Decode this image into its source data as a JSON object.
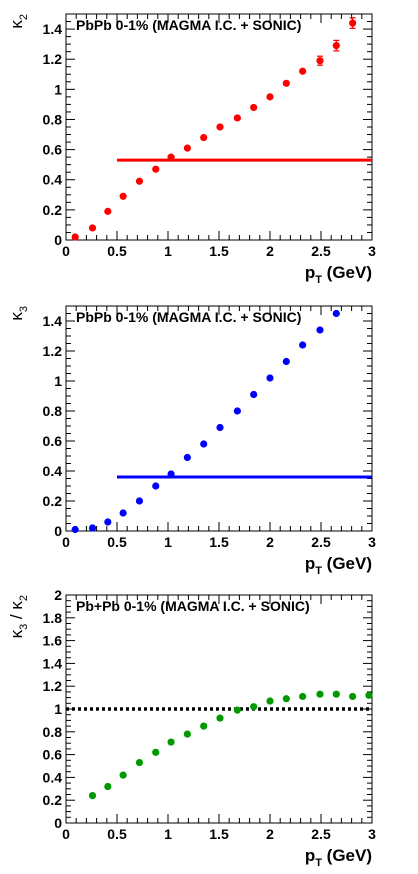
{
  "chart_data": [
    {
      "type": "scatter",
      "annotation": "PbPb 0-1% (MAGMA I.C. + SONIC)",
      "xlabel": {
        "main": "p",
        "sub": "T",
        "unit": " (GeV)"
      },
      "ylabel": {
        "main": "κ",
        "sub": "2"
      },
      "xlim": [
        0,
        3
      ],
      "ylim": [
        0,
        1.5
      ],
      "x_ticks": [
        "0",
        "0.5",
        "1",
        "1.5",
        "2",
        "2.5",
        "3"
      ],
      "y_ticks": [
        "0",
        "0.2",
        "0.4",
        "0.6",
        "0.8",
        "1",
        "1.2",
        "1.4"
      ],
      "color": "#ff0000",
      "reference_line": {
        "y": 0.53,
        "x_from": 0.5,
        "x_to": 3.0,
        "style": "solid",
        "color": "#ff0000"
      },
      "series": [
        {
          "x": [
            0.09,
            0.26,
            0.41,
            0.56,
            0.72,
            0.88,
            1.03,
            1.19,
            1.35,
            1.51,
            1.68,
            1.84,
            2.0,
            2.16,
            2.32,
            2.49,
            2.65,
            2.81
          ],
          "y": [
            0.02,
            0.08,
            0.19,
            0.29,
            0.39,
            0.47,
            0.55,
            0.61,
            0.68,
            0.75,
            0.81,
            0.88,
            0.95,
            1.04,
            1.12,
            1.19,
            1.29,
            1.44
          ],
          "yerr": [
            0,
            0,
            0,
            0,
            0,
            0,
            0,
            0,
            0,
            0,
            0,
            0,
            0,
            0,
            0,
            0.03,
            0.035,
            0.035
          ]
        }
      ]
    },
    {
      "type": "scatter",
      "annotation": "PbPb 0-1% (MAGMA I.C. + SONIC)",
      "xlabel": {
        "main": "p",
        "sub": "T",
        "unit": " (GeV)"
      },
      "ylabel": {
        "main": "κ",
        "sub": "3"
      },
      "xlim": [
        0,
        3
      ],
      "ylim": [
        0,
        1.5
      ],
      "x_ticks": [
        "0",
        "0.5",
        "1",
        "1.5",
        "2",
        "2.5",
        "3"
      ],
      "y_ticks": [
        "0",
        "0.2",
        "0.4",
        "0.6",
        "0.8",
        "1",
        "1.2",
        "1.4"
      ],
      "color": "#0000ff",
      "reference_line": {
        "y": 0.36,
        "x_from": 0.5,
        "x_to": 3.0,
        "style": "solid",
        "color": "#0000ff"
      },
      "series": [
        {
          "x": [
            0.09,
            0.26,
            0.41,
            0.56,
            0.72,
            0.88,
            1.03,
            1.19,
            1.35,
            1.51,
            1.68,
            1.84,
            2.0,
            2.16,
            2.32,
            2.49,
            2.65
          ],
          "y": [
            0.01,
            0.02,
            0.06,
            0.12,
            0.2,
            0.3,
            0.38,
            0.49,
            0.58,
            0.69,
            0.8,
            0.91,
            1.02,
            1.13,
            1.24,
            1.34,
            1.45
          ],
          "yerr": []
        }
      ]
    },
    {
      "type": "scatter",
      "annotation": "Pb+Pb 0-1% (MAGMA I.C. + SONIC)",
      "xlabel": {
        "main": "p",
        "sub": "T",
        "unit": " (GeV)"
      },
      "ylabel": {
        "main": "κ",
        "sub": "3",
        "sep": " / ",
        "main2": "κ",
        "sub2": "2"
      },
      "xlim": [
        0,
        3
      ],
      "ylim": [
        0,
        2
      ],
      "x_ticks": [
        "0",
        "0.5",
        "1",
        "1.5",
        "2",
        "2.5",
        "3"
      ],
      "y_ticks": [
        "0",
        "0.2",
        "0.4",
        "0.6",
        "0.8",
        "1",
        "1.2",
        "1.4",
        "1.6",
        "1.8",
        "2"
      ],
      "color": "#009900",
      "reference_line": {
        "y": 1.0,
        "x_from": 0.0,
        "x_to": 3.0,
        "style": "dotted",
        "color": "#000000"
      },
      "series": [
        {
          "x": [
            0.26,
            0.41,
            0.56,
            0.72,
            0.88,
            1.03,
            1.19,
            1.35,
            1.51,
            1.68,
            1.84,
            2.0,
            2.16,
            2.32,
            2.49,
            2.65,
            2.81,
            2.97
          ],
          "y": [
            0.24,
            0.32,
            0.42,
            0.53,
            0.62,
            0.71,
            0.78,
            0.85,
            0.92,
            0.99,
            1.02,
            1.07,
            1.09,
            1.11,
            1.13,
            1.13,
            1.11,
            1.12
          ],
          "yerr": []
        }
      ]
    }
  ]
}
